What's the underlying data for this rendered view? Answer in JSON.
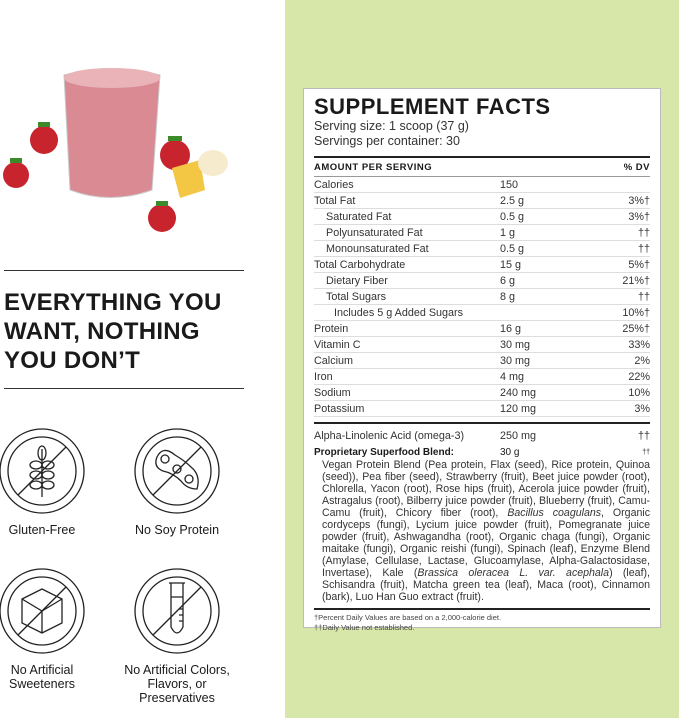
{
  "left": {
    "headline": "EVERYTHING YOU WANT, NOTHING YOU DON’T",
    "badges": [
      {
        "icon": "no-gluten-icon",
        "label": "Gluten-Free"
      },
      {
        "icon": "no-soy-icon",
        "label": "No Soy Protein"
      },
      {
        "icon": "no-sugar-cube-icon",
        "label": "No Artificial Sweeteners"
      },
      {
        "icon": "no-test-tube-icon",
        "label": "No Artificial Colors, Flavors, or Preservatives"
      }
    ]
  },
  "colors": {
    "panel": "#d6e7a9",
    "smoothie": "#d98a93"
  },
  "facts": {
    "title": "SUPPLEMENT FACTS",
    "serving_size": "Serving size: 1 scoop (37 g)",
    "servings": "Servings per container: 30",
    "header_left": "AMOUNT PER SERVING",
    "header_right": "% DV",
    "rows": [
      {
        "name": "Calories",
        "amount": "150",
        "dv": "",
        "indent": 0
      },
      {
        "name": "Total Fat",
        "amount": "2.5 g",
        "dv": "3%†",
        "indent": 0
      },
      {
        "name": "Saturated Fat",
        "amount": "0.5 g",
        "dv": "3%†",
        "indent": 1
      },
      {
        "name": "Polyunsaturated Fat",
        "amount": "1 g",
        "dv": "††",
        "indent": 1
      },
      {
        "name": "Monounsaturated Fat",
        "amount": "0.5 g",
        "dv": "††",
        "indent": 1
      },
      {
        "name": "Total Carbohydrate",
        "amount": "15 g",
        "dv": "5%†",
        "indent": 0
      },
      {
        "name": "Dietary Fiber",
        "amount": "6 g",
        "dv": "21%†",
        "indent": 1
      },
      {
        "name": "Total Sugars",
        "amount": "8 g",
        "dv": "††",
        "indent": 1
      },
      {
        "name": "Includes 5 g Added Sugars",
        "amount": "",
        "dv": "10%†",
        "indent": 2
      },
      {
        "name": "Protein",
        "amount": "16 g",
        "dv": "25%†",
        "indent": 0
      },
      {
        "name": "Vitamin C",
        "amount": "30 mg",
        "dv": "33%",
        "indent": 0
      },
      {
        "name": "Calcium",
        "amount": "30 mg",
        "dv": "2%",
        "indent": 0
      },
      {
        "name": "Iron",
        "amount": "4 mg",
        "dv": "22%",
        "indent": 0
      },
      {
        "name": "Sodium",
        "amount": "240 mg",
        "dv": "10%",
        "indent": 0
      },
      {
        "name": "Potassium",
        "amount": "120 mg",
        "dv": "3%",
        "indent": 0
      }
    ],
    "ala": {
      "name": "Alpha-Linolenic Acid (omega-3)",
      "amount": "250 mg",
      "dv": "††"
    },
    "blend": {
      "name": "Proprietary Superfood Blend:",
      "amount": "30 g",
      "dv": "††",
      "ingredients_1": "Vegan Protein Blend (Pea protein, Flax (seed), Rice protein, Quinoa (seed)), Pea fiber (seed), Strawberry (fruit), Beet juice powder (root), Chlorella, Yacon (root), Rose hips (fruit), Acerola juice powder (fruit), Astragalus (root), Bilberry juice powder (fruit), Blueberry (fruit), Camu-Camu (fruit), Chicory fiber (root), ",
      "italic_1": "Bacillus coagulans",
      "ingredients_2": ", Organic cordyceps (fungi), Lycium juice powder (fruit), Pomegranate juice powder (fruit), Ashwagandha (root), Organic chaga (fungi), Organic maitake (fungi), Organic reishi (fungi), Spinach (leaf), Enzyme Blend (Amylase, Cellulase, Lactase, Glucoamylase, Alpha-Galactosidase, Invertase), Kale (",
      "italic_2": "Brassica oleracea L. var. acephala",
      "ingredients_3": ") (leaf), Schisandra (fruit), Matcha green tea (leaf), Maca (root), Cinnamon (bark), Luo Han Guo extract (fruit)."
    },
    "footnote_1": "†Percent Daily Values are based on a 2,000-calorie diet.",
    "footnote_2": "††Daily Value not established."
  }
}
